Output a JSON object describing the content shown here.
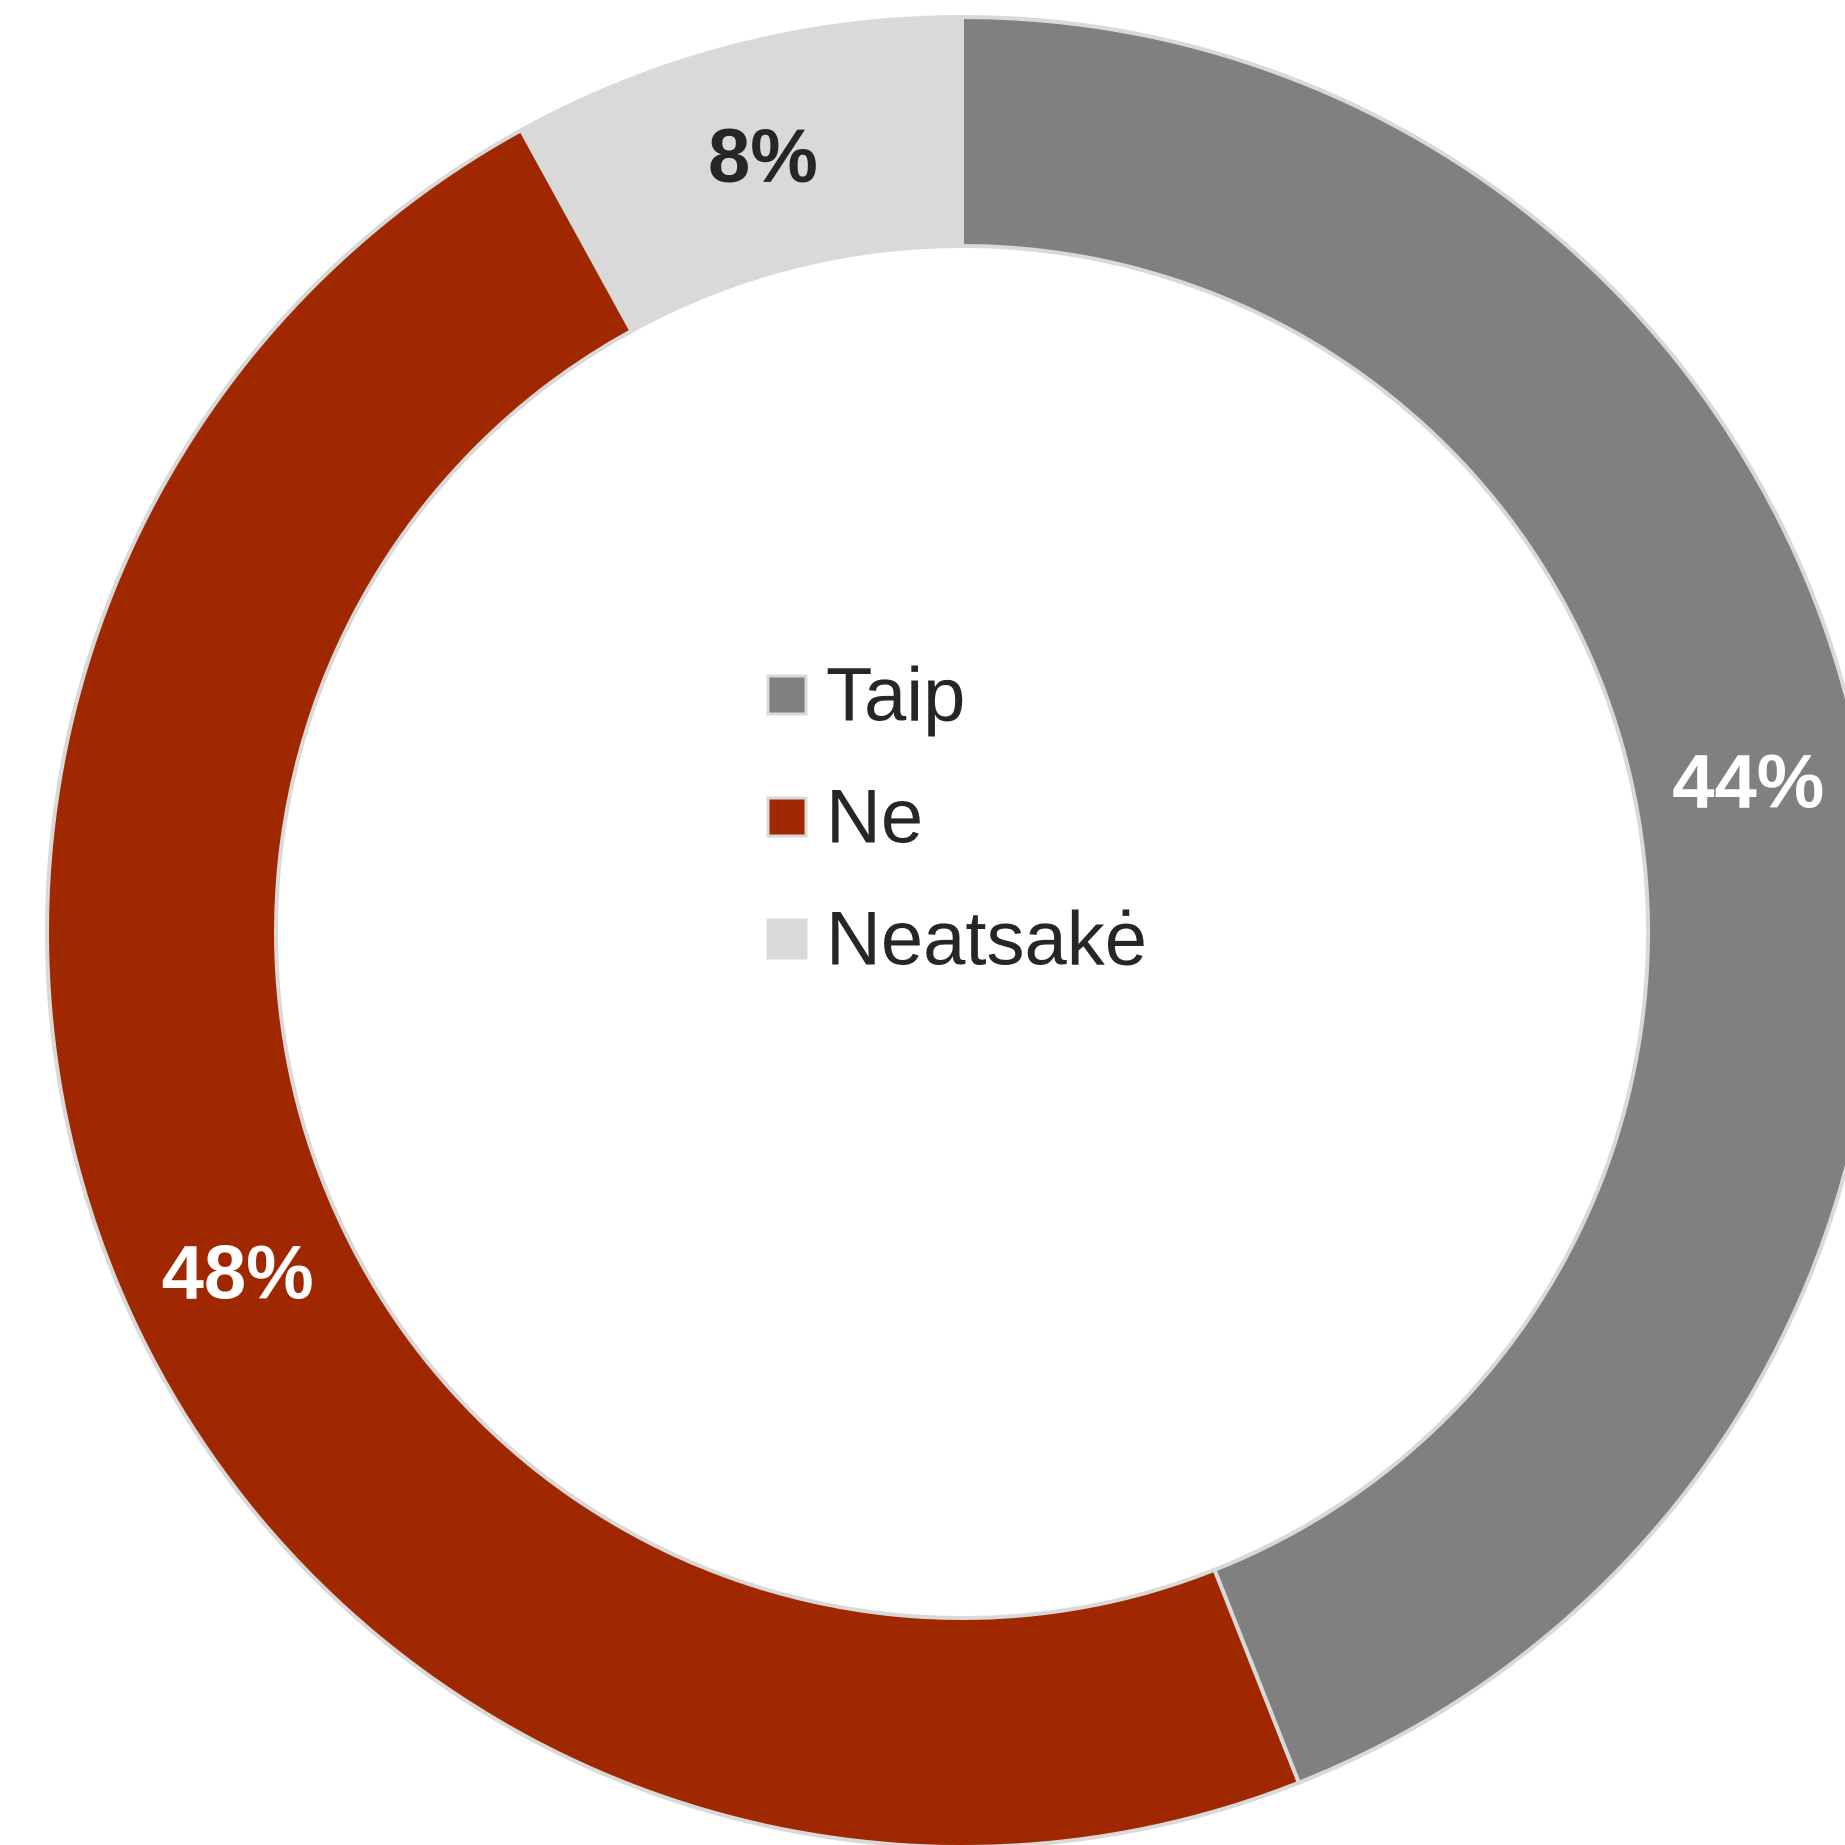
{
  "chart_data": {
    "type": "pie",
    "variant": "donut",
    "categories": [
      "Taip",
      "Ne",
      "Neatsakė"
    ],
    "values": [
      44,
      48,
      8
    ],
    "data_labels": [
      "44%",
      "48%",
      "8%"
    ],
    "colors": [
      "#808080",
      "#a02800",
      "#d9d9d9"
    ],
    "label_colors": [
      "#ffffff",
      "#ffffff",
      "#262626"
    ],
    "legend": {
      "entries": [
        "Taip",
        "Ne",
        "Neatsakė"
      ],
      "placement": "center"
    }
  }
}
